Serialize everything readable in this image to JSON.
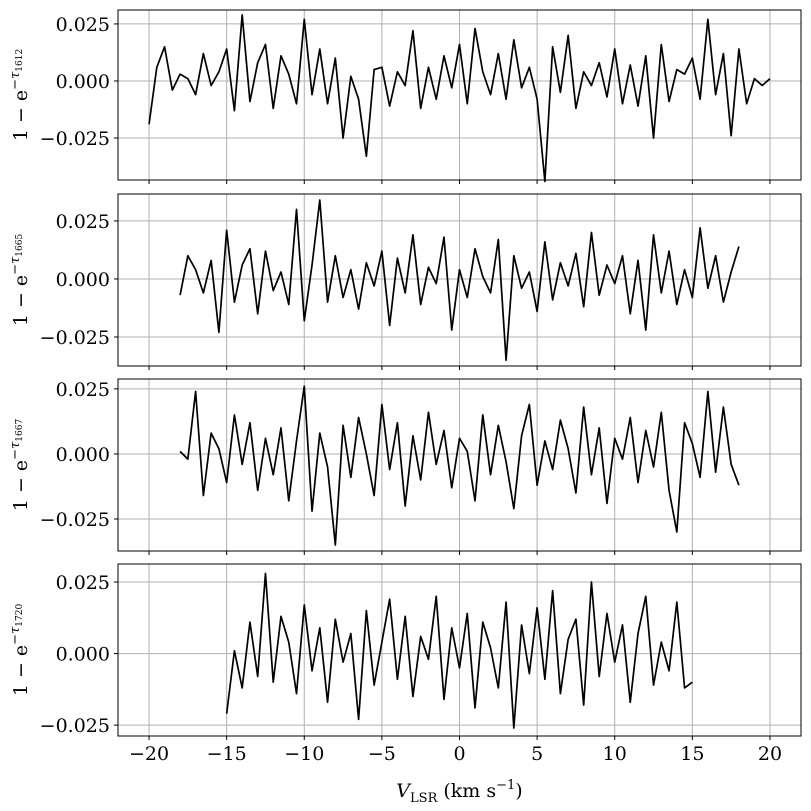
{
  "chart_data": [
    {
      "type": "line",
      "ylabel": "1 − e",
      "ylabel_sup": "−τ",
      "ylabel_sub": "1612",
      "x": [
        -20,
        -19.5,
        -19,
        -18.5,
        -18,
        -17.5,
        -17,
        -16.5,
        -16,
        -15.5,
        -15,
        -14.5,
        -14,
        -13.5,
        -13,
        -12.5,
        -12,
        -11.5,
        -11,
        -10.5,
        -10,
        -9.5,
        -9,
        -8.5,
        -8,
        -7.5,
        -7,
        -6.5,
        -6,
        -5.5,
        -5,
        -4.5,
        -4,
        -3.5,
        -3,
        -2.5,
        -2,
        -1.5,
        -1,
        -0.5,
        0,
        0.5,
        1,
        1.5,
        2,
        2.5,
        3,
        3.5,
        4,
        4.5,
        5,
        5.5,
        6,
        6.5,
        7,
        7.5,
        8,
        8.5,
        9,
        9.5,
        10,
        10.5,
        11,
        11.5,
        12,
        12.5,
        13,
        13.5,
        14,
        14.5,
        15,
        15.5,
        16,
        16.5,
        17,
        17.5,
        18,
        18.5,
        19,
        19.5,
        20
      ],
      "series": [
        {
          "color": "#000000",
          "values": [
            -0.019,
            0.006,
            0.015,
            -0.004,
            0.003,
            0.001,
            -0.006,
            0.012,
            -0.002,
            0.004,
            0.014,
            -0.013,
            0.029,
            -0.009,
            0.008,
            0.016,
            -0.012,
            0.011,
            0.003,
            -0.01,
            0.027,
            -0.006,
            0.014,
            -0.01,
            0.01,
            -0.025,
            0.002,
            -0.008,
            -0.033,
            0.005,
            0.006,
            -0.011,
            0.004,
            -0.002,
            0.022,
            -0.012,
            0.006,
            -0.008,
            0.011,
            -0.003,
            0.016,
            -0.01,
            0.023,
            0.004,
            -0.006,
            0.012,
            -0.008,
            0.018,
            -0.003,
            0.006,
            -0.008,
            -0.044,
            0.015,
            -0.005,
            0.02,
            -0.012,
            0.004,
            -0.002,
            0.008,
            -0.007,
            0.014,
            -0.01,
            0.007,
            -0.011,
            0.011,
            -0.025,
            0.016,
            -0.009,
            0.005,
            0.003,
            0.01,
            -0.008,
            0.027,
            -0.006,
            0.012,
            -0.024,
            0.014,
            -0.01,
            0.001,
            -0.002,
            0.001
          ]
        }
      ],
      "ylim": [
        -0.0434,
        0.0311
      ],
      "yticks": [
        {
          "value": -0.025,
          "label": "−0.025"
        },
        {
          "value": 0,
          "label": "0.000"
        },
        {
          "value": 0.025,
          "label": "0.025"
        }
      ],
      "grid": true
    },
    {
      "type": "line",
      "ylabel": "1 − e",
      "ylabel_sup": "−τ",
      "ylabel_sub": "1665",
      "x": [
        -18,
        -17.5,
        -17,
        -16.5,
        -16,
        -15.5,
        -15,
        -14.5,
        -14,
        -13.5,
        -13,
        -12.5,
        -12,
        -11.5,
        -11,
        -10.5,
        -10,
        -9.5,
        -9,
        -8.5,
        -8,
        -7.5,
        -7,
        -6.5,
        -6,
        -5.5,
        -5,
        -4.5,
        -4,
        -3.5,
        -3,
        -2.5,
        -2,
        -1.5,
        -1,
        -0.5,
        0,
        0.5,
        1,
        1.5,
        2,
        2.5,
        3,
        3.5,
        4,
        4.5,
        5,
        5.5,
        6,
        6.5,
        7,
        7.5,
        8,
        8.5,
        9,
        9.5,
        10,
        10.5,
        11,
        11.5,
        12,
        12.5,
        13,
        13.5,
        14,
        14.5,
        15,
        15.5,
        16,
        16.5,
        17,
        17.5,
        18
      ],
      "series": [
        {
          "color": "#000000",
          "values": [
            -0.007,
            0.01,
            0.004,
            -0.006,
            0.008,
            -0.023,
            0.021,
            -0.01,
            0.006,
            0.013,
            -0.015,
            0.012,
            -0.005,
            0.003,
            -0.011,
            0.03,
            -0.018,
            0.006,
            0.034,
            -0.01,
            0.01,
            -0.008,
            0.004,
            -0.013,
            0.007,
            -0.003,
            0.012,
            -0.02,
            0.009,
            -0.006,
            0.019,
            -0.011,
            0.005,
            -0.002,
            0.018,
            -0.022,
            0.004,
            -0.008,
            0.013,
            0.001,
            -0.006,
            0.017,
            -0.035,
            0.01,
            -0.004,
            0.003,
            -0.014,
            0.016,
            -0.009,
            0.007,
            -0.003,
            0.011,
            -0.012,
            0.02,
            -0.007,
            0.006,
            -0.002,
            0.01,
            -0.015,
            0.008,
            -0.022,
            0.019,
            -0.006,
            0.012,
            -0.011,
            0.004,
            -0.008,
            0.022,
            -0.004,
            0.01,
            -0.01,
            0.003,
            0.014
          ]
        }
      ],
      "ylim": [
        -0.0375,
        0.0366
      ],
      "yticks": [
        {
          "value": -0.025,
          "label": "−0.025"
        },
        {
          "value": 0,
          "label": "0.000"
        },
        {
          "value": 0.025,
          "label": "0.025"
        }
      ],
      "grid": true
    },
    {
      "type": "line",
      "ylabel": "1 − e",
      "ylabel_sup": "−τ",
      "ylabel_sub": "1667",
      "x": [
        -18,
        -17.5,
        -17,
        -16.5,
        -16,
        -15.5,
        -15,
        -14.5,
        -14,
        -13.5,
        -13,
        -12.5,
        -12,
        -11.5,
        -11,
        -10.5,
        -10,
        -9.5,
        -9,
        -8.5,
        -8,
        -7.5,
        -7,
        -6.5,
        -6,
        -5.5,
        -5,
        -4.5,
        -4,
        -3.5,
        -3,
        -2.5,
        -2,
        -1.5,
        -1,
        -0.5,
        0,
        0.5,
        1,
        1.5,
        2,
        2.5,
        3,
        3.5,
        4,
        4.5,
        5,
        5.5,
        6,
        6.5,
        7,
        7.5,
        8,
        8.5,
        9,
        9.5,
        10,
        10.5,
        11,
        11.5,
        12,
        12.5,
        13,
        13.5,
        14,
        14.5,
        15,
        15.5,
        16,
        16.5,
        17,
        17.5,
        18
      ],
      "series": [
        {
          "color": "#000000",
          "values": [
            0.001,
            -0.002,
            0.024,
            -0.016,
            0.008,
            0.002,
            -0.011,
            0.015,
            -0.004,
            0.012,
            -0.014,
            0.006,
            -0.008,
            0.01,
            -0.018,
            0.005,
            0.026,
            -0.022,
            0.008,
            -0.005,
            -0.035,
            0.011,
            -0.009,
            0.014,
            0.0,
            -0.016,
            0.019,
            -0.006,
            0.012,
            -0.02,
            0.007,
            -0.01,
            0.016,
            -0.004,
            0.009,
            -0.013,
            0.006,
            0.001,
            -0.018,
            0.015,
            -0.008,
            0.011,
            -0.003,
            -0.021,
            0.007,
            0.019,
            -0.012,
            0.005,
            -0.006,
            0.013,
            0.002,
            -0.015,
            0.018,
            -0.008,
            0.01,
            -0.019,
            0.006,
            -0.002,
            0.014,
            -0.011,
            0.009,
            -0.005,
            0.016,
            -0.014,
            -0.03,
            0.012,
            0.004,
            -0.009,
            0.024,
            -0.007,
            0.018,
            -0.004,
            -0.012
          ]
        }
      ],
      "ylim": [
        -0.0373,
        0.0288
      ],
      "yticks": [
        {
          "value": -0.025,
          "label": "−0.025"
        },
        {
          "value": 0,
          "label": "0.000"
        },
        {
          "value": 0.025,
          "label": "0.025"
        }
      ],
      "grid": true
    },
    {
      "type": "line",
      "ylabel": "1 − e",
      "ylabel_sup": "−τ",
      "ylabel_sub": "1720",
      "xlabel": "V",
      "xlabel_sub": "LSR",
      "xlabel_unit": "(km s",
      "xlabel_unit_sup": "−1",
      "xlabel_close": ")",
      "x": [
        -15,
        -14.5,
        -14,
        -13.5,
        -13,
        -12.5,
        -12,
        -11.5,
        -11,
        -10.5,
        -10,
        -9.5,
        -9,
        -8.5,
        -8,
        -7.5,
        -7,
        -6.5,
        -6,
        -5.5,
        -5,
        -4.5,
        -4,
        -3.5,
        -3,
        -2.5,
        -2,
        -1.5,
        -1,
        -0.5,
        0,
        0.5,
        1,
        1.5,
        2,
        2.5,
        3,
        3.5,
        4,
        4.5,
        5,
        5.5,
        6,
        6.5,
        7,
        7.5,
        8,
        8.5,
        9,
        9.5,
        10,
        10.5,
        11,
        11.5,
        12,
        12.5,
        13,
        13.5,
        14,
        14.5,
        15
      ],
      "series": [
        {
          "color": "#000000",
          "values": [
            -0.021,
            0.001,
            -0.012,
            0.011,
            -0.008,
            0.028,
            -0.01,
            0.013,
            0.004,
            -0.014,
            0.017,
            -0.006,
            0.009,
            -0.017,
            0.012,
            -0.003,
            0.007,
            -0.023,
            0.015,
            -0.011,
            0.004,
            0.019,
            -0.009,
            0.013,
            -0.015,
            0.006,
            -0.002,
            0.02,
            -0.016,
            0.009,
            -0.005,
            0.014,
            -0.019,
            0.011,
            0.002,
            -0.012,
            0.018,
            -0.026,
            0.01,
            -0.007,
            0.016,
            -0.009,
            0.022,
            -0.014,
            0.005,
            0.012,
            -0.018,
            0.025,
            -0.008,
            0.014,
            -0.003,
            0.01,
            -0.017,
            0.007,
            0.02,
            -0.011,
            0.004,
            -0.006,
            0.018,
            -0.012,
            -0.01
          ]
        }
      ],
      "ylim": [
        -0.0288,
        0.0313
      ],
      "yticks": [
        {
          "value": -0.025,
          "label": "−0.025"
        },
        {
          "value": 0,
          "label": "0.000"
        },
        {
          "value": 0.025,
          "label": "0.025"
        }
      ],
      "xlim": [
        -22,
        22
      ],
      "xticks": [
        {
          "value": -20,
          "label": "−20"
        },
        {
          "value": -15,
          "label": "−15"
        },
        {
          "value": -10,
          "label": "−10"
        },
        {
          "value": -5,
          "label": "−5"
        },
        0,
        5,
        10,
        15,
        20
      ],
      "grid": true
    }
  ]
}
